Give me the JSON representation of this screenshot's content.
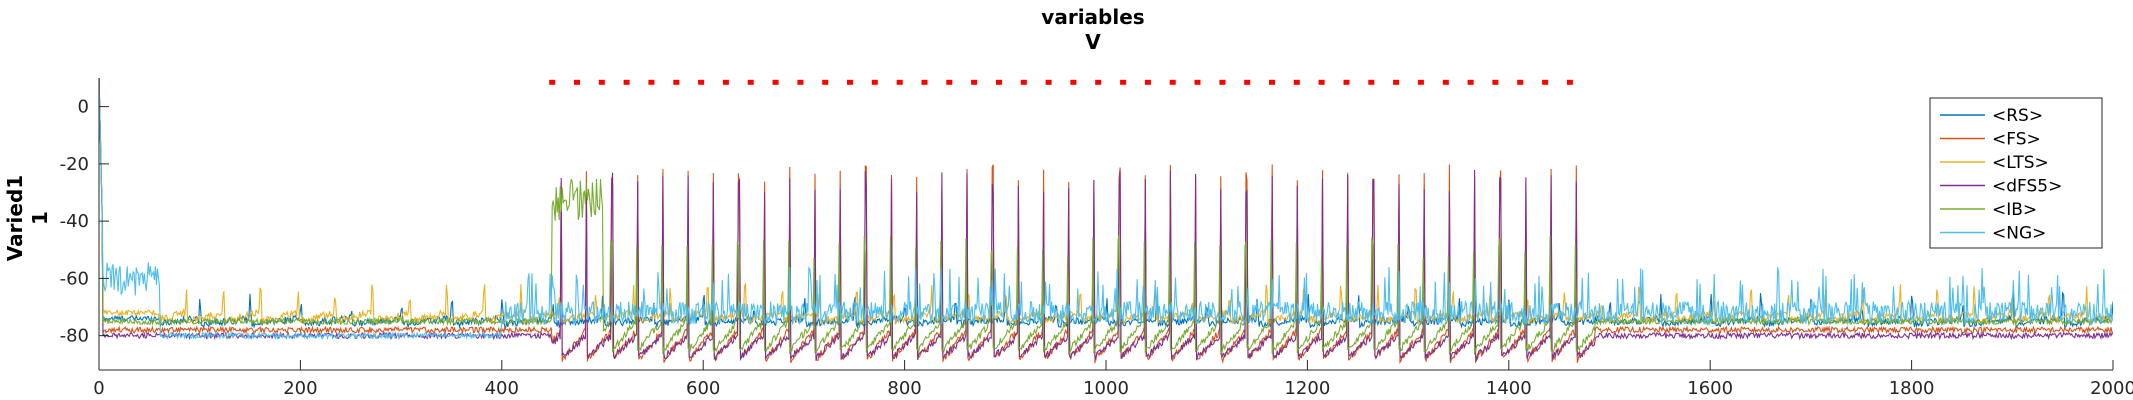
{
  "chart_data": {
    "type": "line",
    "title": "variables",
    "subtitle": "V",
    "ylabel_lines": [
      "Varied1",
      "1"
    ],
    "xlabel": "",
    "xlim": [
      0,
      2000
    ],
    "ylim": [
      -92,
      10
    ],
    "xticks": [
      0,
      200,
      400,
      600,
      800,
      1000,
      1200,
      1400,
      1600,
      1800,
      2000
    ],
    "yticks": [
      0,
      -20,
      -40,
      -60,
      -80
    ],
    "grid": false,
    "legend_position": "top-right",
    "stimulus_marker": {
      "y": 8.5,
      "x_start": 450,
      "x_end": 1485,
      "step": 24.65,
      "color": "#FF0000"
    },
    "series": [
      {
        "name": "<RS>",
        "color": "#0072BD",
        "base": -76,
        "rest": -74,
        "spike_peak": -65,
        "period": 50,
        "phase": 0,
        "spiking": [
          [
            60,
            2000
          ]
        ]
      },
      {
        "name": "<FS>",
        "color": "#D95319",
        "base": -89,
        "rest": -78,
        "spike_peak": -20,
        "period": 25.2,
        "phase": 5,
        "spiking": [
          [
            450,
            1485
          ]
        ]
      },
      {
        "name": "<LTS>",
        "color": "#EDB120",
        "base": -75,
        "rest": -72,
        "spike_peak": -62,
        "period": 37,
        "phase": 12,
        "spiking": [
          [
            60,
            2000
          ]
        ]
      },
      {
        "name": "<dFS5>",
        "color": "#7E2F8E",
        "base": -88,
        "rest": -80,
        "spike_peak": -22,
        "period": 25.2,
        "phase": 5,
        "spiking": [
          [
            450,
            1485
          ]
        ]
      },
      {
        "name": "<IB>",
        "color": "#77AC30",
        "base": -86,
        "rest": -75,
        "spike_peak": -45,
        "period": 25.2,
        "phase": 4,
        "spiking": [
          [
            450,
            1485
          ]
        ]
      },
      {
        "name": "<NG>",
        "color": "#4DBEEE",
        "base": -78,
        "rest": -80,
        "spike_peak": -60,
        "period": 10,
        "phase": 0,
        "spiking": [
          [
            0,
            60
          ],
          [
            400,
            2000
          ]
        ]
      }
    ]
  }
}
